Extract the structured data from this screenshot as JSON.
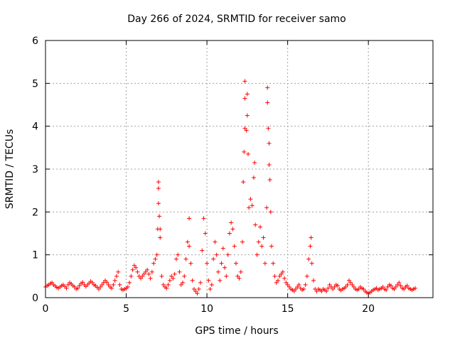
{
  "chart_data": {
    "type": "scatter",
    "title": "Day 266 of 2024, SRMTID for receiver samo",
    "xlabel": "GPS time / hours",
    "ylabel": "SRMTID / TECUs",
    "xlim": [
      0,
      24
    ],
    "ylim": [
      0,
      6
    ],
    "xticks": [
      0,
      5,
      10,
      15,
      20
    ],
    "yticks": [
      0,
      1,
      2,
      3,
      4,
      5,
      6
    ],
    "grid": true,
    "marker": "+",
    "color": "#ff0000",
    "series": [
      {
        "name": "SRMTID",
        "points": [
          [
            0.0,
            0.25
          ],
          [
            0.1,
            0.28
          ],
          [
            0.2,
            0.3
          ],
          [
            0.3,
            0.33
          ],
          [
            0.4,
            0.35
          ],
          [
            0.5,
            0.3
          ],
          [
            0.6,
            0.27
          ],
          [
            0.7,
            0.24
          ],
          [
            0.8,
            0.22
          ],
          [
            0.9,
            0.25
          ],
          [
            1.0,
            0.28
          ],
          [
            1.1,
            0.3
          ],
          [
            1.2,
            0.26
          ],
          [
            1.3,
            0.22
          ],
          [
            1.4,
            0.3
          ],
          [
            1.5,
            0.35
          ],
          [
            1.6,
            0.32
          ],
          [
            1.7,
            0.28
          ],
          [
            1.8,
            0.25
          ],
          [
            1.9,
            0.2
          ],
          [
            2.0,
            0.22
          ],
          [
            2.1,
            0.28
          ],
          [
            2.2,
            0.33
          ],
          [
            2.3,
            0.36
          ],
          [
            2.4,
            0.3
          ],
          [
            2.5,
            0.26
          ],
          [
            2.6,
            0.3
          ],
          [
            2.7,
            0.34
          ],
          [
            2.8,
            0.38
          ],
          [
            2.9,
            0.35
          ],
          [
            3.0,
            0.3
          ],
          [
            3.1,
            0.28
          ],
          [
            3.2,
            0.24
          ],
          [
            3.3,
            0.2
          ],
          [
            3.4,
            0.25
          ],
          [
            3.5,
            0.3
          ],
          [
            3.6,
            0.35
          ],
          [
            3.7,
            0.4
          ],
          [
            3.8,
            0.36
          ],
          [
            3.9,
            0.3
          ],
          [
            4.0,
            0.25
          ],
          [
            4.1,
            0.22
          ],
          [
            4.2,
            0.3
          ],
          [
            4.3,
            0.4
          ],
          [
            4.4,
            0.5
          ],
          [
            4.5,
            0.6
          ],
          [
            4.6,
            0.3
          ],
          [
            4.7,
            0.2
          ],
          [
            4.8,
            0.18
          ],
          [
            4.9,
            0.2
          ],
          [
            5.0,
            0.22
          ],
          [
            5.1,
            0.25
          ],
          [
            5.2,
            0.35
          ],
          [
            5.3,
            0.5
          ],
          [
            5.4,
            0.65
          ],
          [
            5.5,
            0.75
          ],
          [
            5.6,
            0.7
          ],
          [
            5.7,
            0.6
          ],
          [
            5.8,
            0.5
          ],
          [
            5.9,
            0.45
          ],
          [
            6.0,
            0.5
          ],
          [
            6.1,
            0.55
          ],
          [
            6.2,
            0.6
          ],
          [
            6.3,
            0.65
          ],
          [
            6.4,
            0.55
          ],
          [
            6.5,
            0.45
          ],
          [
            6.6,
            0.6
          ],
          [
            6.7,
            0.8
          ],
          [
            6.8,
            0.9
          ],
          [
            6.9,
            1.0
          ],
          [
            6.95,
            1.6
          ],
          [
            7.0,
            2.2
          ],
          [
            7.0,
            2.55
          ],
          [
            7.0,
            2.7
          ],
          [
            7.05,
            1.9
          ],
          [
            7.1,
            1.4
          ],
          [
            7.1,
            1.6
          ],
          [
            7.2,
            0.5
          ],
          [
            7.3,
            0.3
          ],
          [
            7.4,
            0.25
          ],
          [
            7.5,
            0.22
          ],
          [
            7.6,
            0.3
          ],
          [
            7.7,
            0.4
          ],
          [
            7.8,
            0.5
          ],
          [
            7.9,
            0.45
          ],
          [
            8.0,
            0.55
          ],
          [
            8.1,
            0.9
          ],
          [
            8.2,
            1.0
          ],
          [
            8.3,
            0.6
          ],
          [
            8.4,
            0.3
          ],
          [
            8.5,
            0.35
          ],
          [
            8.6,
            0.5
          ],
          [
            8.7,
            0.9
          ],
          [
            8.8,
            1.3
          ],
          [
            8.9,
            1.85
          ],
          [
            8.9,
            1.2
          ],
          [
            9.0,
            0.8
          ],
          [
            9.1,
            0.4
          ],
          [
            9.2,
            0.2
          ],
          [
            9.3,
            0.15
          ],
          [
            9.4,
            0.1
          ],
          [
            9.5,
            0.2
          ],
          [
            9.6,
            0.35
          ],
          [
            9.7,
            1.1
          ],
          [
            9.8,
            1.85
          ],
          [
            9.9,
            1.5
          ],
          [
            10.0,
            0.8
          ],
          [
            10.1,
            0.4
          ],
          [
            10.2,
            0.2
          ],
          [
            10.3,
            0.3
          ],
          [
            10.4,
            0.9
          ],
          [
            10.5,
            1.3
          ],
          [
            10.6,
            1.0
          ],
          [
            10.7,
            0.6
          ],
          [
            10.8,
            0.4
          ],
          [
            10.9,
            0.8
          ],
          [
            11.0,
            1.15
          ],
          [
            11.1,
            0.7
          ],
          [
            11.2,
            0.5
          ],
          [
            11.3,
            1.0
          ],
          [
            11.4,
            1.5
          ],
          [
            11.5,
            1.75
          ],
          [
            11.6,
            1.6
          ],
          [
            11.7,
            1.2
          ],
          [
            11.8,
            0.8
          ],
          [
            11.9,
            0.5
          ],
          [
            12.0,
            0.45
          ],
          [
            12.1,
            0.6
          ],
          [
            12.2,
            1.3
          ],
          [
            12.25,
            2.7
          ],
          [
            12.3,
            3.4
          ],
          [
            12.35,
            3.95
          ],
          [
            12.35,
            4.65
          ],
          [
            12.35,
            5.05
          ],
          [
            12.45,
            3.9
          ],
          [
            12.5,
            4.25
          ],
          [
            12.5,
            4.75
          ],
          [
            12.55,
            3.35
          ],
          [
            12.6,
            2.1
          ],
          [
            12.7,
            2.3
          ],
          [
            12.8,
            2.15
          ],
          [
            12.9,
            2.8
          ],
          [
            12.95,
            3.15
          ],
          [
            13.0,
            1.7
          ],
          [
            13.1,
            1.0
          ],
          [
            13.2,
            1.3
          ],
          [
            13.3,
            1.65
          ],
          [
            13.4,
            1.2
          ],
          [
            13.5,
            1.4
          ],
          [
            13.6,
            0.8
          ],
          [
            13.7,
            2.1
          ],
          [
            13.75,
            4.9
          ],
          [
            13.75,
            4.55
          ],
          [
            13.8,
            3.95
          ],
          [
            13.85,
            3.6
          ],
          [
            13.85,
            3.1
          ],
          [
            13.9,
            2.75
          ],
          [
            13.95,
            2.0
          ],
          [
            14.0,
            1.2
          ],
          [
            14.1,
            0.8
          ],
          [
            14.2,
            0.5
          ],
          [
            14.3,
            0.35
          ],
          [
            14.4,
            0.4
          ],
          [
            14.5,
            0.5
          ],
          [
            14.6,
            0.55
          ],
          [
            14.7,
            0.6
          ],
          [
            14.8,
            0.45
          ],
          [
            14.9,
            0.35
          ],
          [
            15.0,
            0.3
          ],
          [
            15.1,
            0.25
          ],
          [
            15.2,
            0.2
          ],
          [
            15.3,
            0.18
          ],
          [
            15.4,
            0.15
          ],
          [
            15.5,
            0.2
          ],
          [
            15.6,
            0.25
          ],
          [
            15.7,
            0.3
          ],
          [
            15.8,
            0.22
          ],
          [
            15.9,
            0.18
          ],
          [
            16.0,
            0.2
          ],
          [
            16.1,
            0.3
          ],
          [
            16.2,
            0.5
          ],
          [
            16.3,
            0.9
          ],
          [
            16.4,
            1.2
          ],
          [
            16.45,
            1.4
          ],
          [
            16.5,
            0.8
          ],
          [
            16.6,
            0.4
          ],
          [
            16.7,
            0.2
          ],
          [
            16.8,
            0.15
          ],
          [
            16.9,
            0.2
          ],
          [
            17.0,
            0.18
          ],
          [
            17.1,
            0.15
          ],
          [
            17.2,
            0.2
          ],
          [
            17.3,
            0.18
          ],
          [
            17.4,
            0.15
          ],
          [
            17.5,
            0.22
          ],
          [
            17.6,
            0.3
          ],
          [
            17.7,
            0.25
          ],
          [
            17.8,
            0.2
          ],
          [
            17.9,
            0.25
          ],
          [
            18.0,
            0.3
          ],
          [
            18.1,
            0.28
          ],
          [
            18.2,
            0.2
          ],
          [
            18.3,
            0.17
          ],
          [
            18.4,
            0.2
          ],
          [
            18.5,
            0.22
          ],
          [
            18.6,
            0.25
          ],
          [
            18.7,
            0.3
          ],
          [
            18.8,
            0.4
          ],
          [
            18.9,
            0.35
          ],
          [
            19.0,
            0.3
          ],
          [
            19.1,
            0.25
          ],
          [
            19.2,
            0.2
          ],
          [
            19.3,
            0.18
          ],
          [
            19.4,
            0.2
          ],
          [
            19.5,
            0.25
          ],
          [
            19.6,
            0.22
          ],
          [
            19.7,
            0.2
          ],
          [
            19.8,
            0.15
          ],
          [
            19.9,
            0.12
          ],
          [
            20.0,
            0.1
          ],
          [
            20.1,
            0.12
          ],
          [
            20.2,
            0.15
          ],
          [
            20.3,
            0.18
          ],
          [
            20.4,
            0.2
          ],
          [
            20.5,
            0.22
          ],
          [
            20.6,
            0.18
          ],
          [
            20.7,
            0.2
          ],
          [
            20.8,
            0.22
          ],
          [
            20.9,
            0.25
          ],
          [
            21.0,
            0.2
          ],
          [
            21.1,
            0.18
          ],
          [
            21.2,
            0.25
          ],
          [
            21.3,
            0.3
          ],
          [
            21.4,
            0.28
          ],
          [
            21.5,
            0.22
          ],
          [
            21.6,
            0.2
          ],
          [
            21.7,
            0.25
          ],
          [
            21.8,
            0.3
          ],
          [
            21.9,
            0.35
          ],
          [
            22.0,
            0.28
          ],
          [
            22.1,
            0.22
          ],
          [
            22.2,
            0.2
          ],
          [
            22.3,
            0.25
          ],
          [
            22.4,
            0.28
          ],
          [
            22.5,
            0.22
          ],
          [
            22.6,
            0.2
          ],
          [
            22.7,
            0.18
          ],
          [
            22.8,
            0.2
          ],
          [
            22.9,
            0.22
          ]
        ]
      }
    ]
  }
}
